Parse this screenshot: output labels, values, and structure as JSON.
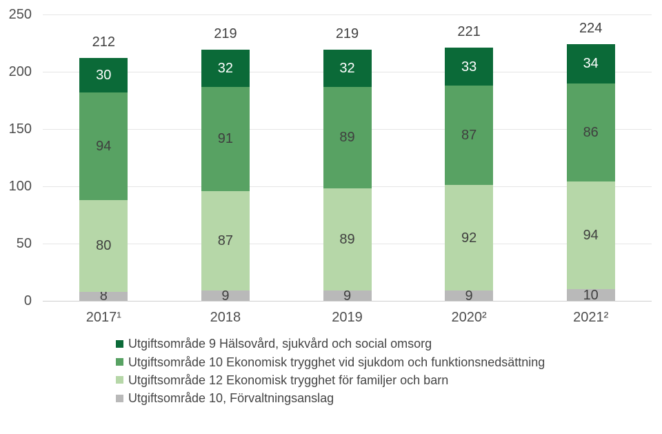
{
  "chart_data": {
    "type": "bar",
    "stacked": true,
    "title": "",
    "categories": [
      "2017¹",
      "2018",
      "2019",
      "2020²",
      "2021²"
    ],
    "series": [
      {
        "name": "Utgiftsområde 10, Förvaltningsanslag",
        "color": "#b9b9b9",
        "label_color": "#3f3f3f",
        "values": [
          8,
          9,
          9,
          9,
          10
        ]
      },
      {
        "name": "Utgiftsområde 12 Ekonomisk trygghet för familjer och barn",
        "color": "#b6d7a8",
        "label_color": "#3f3f3f",
        "values": [
          80,
          87,
          89,
          92,
          94
        ]
      },
      {
        "name": "Utgiftsområde 10 Ekonomisk trygghet vid sjukdom och funktionsnedsättning",
        "color": "#58a263",
        "label_color": "#3f3f3f",
        "values": [
          94,
          91,
          89,
          87,
          86
        ]
      },
      {
        "name": "Utgiftsområde 9 Hälsovård, sjukvård och social omsorg",
        "color": "#0b6a38",
        "label_color": "#ffffff",
        "values": [
          30,
          32,
          32,
          33,
          34
        ]
      }
    ],
    "totals": [
      212,
      219,
      219,
      221,
      224
    ],
    "y_ticks": [
      0,
      50,
      100,
      150,
      200,
      250
    ],
    "ylim": [
      0,
      250
    ],
    "grid": true,
    "legend_position": "bottom",
    "legend_order": "reverse-of-stack"
  },
  "colors": {
    "background": "#ffffff",
    "gridline": "#e5e5e5",
    "axis_line": "#cfcfcf",
    "axis_label": "#4d4d4d",
    "total_label": "#3f3f3f",
    "legend_text": "#444444"
  }
}
